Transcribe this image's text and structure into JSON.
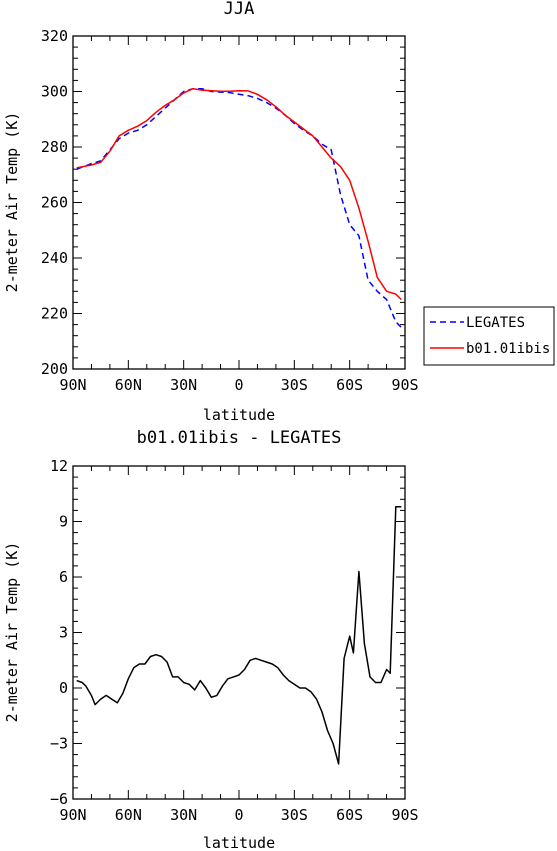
{
  "chart_data": [
    {
      "type": "line",
      "title": "JJA",
      "xlabel": "latitude",
      "ylabel": "2-meter Air Temp (K)",
      "xlim": [
        90,
        -90
      ],
      "ylim": [
        200,
        320
      ],
      "xticks": [
        90,
        60,
        30,
        0,
        -30,
        -60,
        -90
      ],
      "xtick_labels": [
        "90N",
        "60N",
        "30N",
        "0",
        "30S",
        "60S",
        "90S"
      ],
      "yticks": [
        200,
        220,
        240,
        260,
        280,
        300,
        320
      ],
      "ytick_labels": [
        "200",
        "220",
        "240",
        "260",
        "280",
        "300",
        "320"
      ],
      "grid": false,
      "legend": "right, outside plot",
      "series": [
        {
          "name": "LEGATES",
          "color": "#0000ff",
          "dash": "dashed",
          "x": [
            88,
            80,
            75,
            70,
            65,
            60,
            55,
            50,
            45,
            40,
            35,
            30,
            25,
            20,
            15,
            10,
            5,
            0,
            -5,
            -10,
            -15,
            -20,
            -25,
            -30,
            -35,
            -40,
            -45,
            -50,
            -55,
            -60,
            -65,
            -70,
            -75,
            -80,
            -85,
            -88
          ],
          "y": [
            272,
            274,
            275,
            279,
            283,
            285,
            286,
            288,
            291,
            294,
            297,
            300,
            301,
            301,
            300,
            299.8,
            299.6,
            299,
            298.5,
            297.5,
            296,
            294,
            291.5,
            288.5,
            286,
            284,
            281,
            279,
            263,
            252,
            248,
            232,
            228,
            225,
            217,
            215
          ]
        },
        {
          "name": "b01.01ibis",
          "color": "#ff0000",
          "dash": "solid",
          "x": [
            88,
            80,
            75,
            70,
            65,
            60,
            55,
            50,
            45,
            40,
            35,
            30,
            25,
            20,
            15,
            10,
            5,
            0,
            -5,
            -10,
            -15,
            -20,
            -25,
            -30,
            -35,
            -40,
            -45,
            -50,
            -55,
            -60,
            -65,
            -70,
            -75,
            -80,
            -85,
            -88
          ],
          "y": [
            272.5,
            273.5,
            274.5,
            278.5,
            284,
            286,
            287.5,
            289.5,
            292.5,
            295,
            297,
            299.5,
            301,
            300.5,
            300.3,
            300.1,
            300.1,
            300.3,
            300.2,
            299,
            297,
            294.5,
            291.5,
            289,
            286.5,
            284,
            280,
            276,
            273,
            268,
            258,
            246,
            233,
            228,
            227,
            225
          ]
        }
      ]
    },
    {
      "type": "line",
      "title": "b01.01ibis - LEGATES",
      "xlabel": "latitude",
      "ylabel": "2-meter Air Temp (K)",
      "xlim": [
        90,
        -90
      ],
      "ylim": [
        -6,
        12
      ],
      "xticks": [
        90,
        60,
        30,
        0,
        -30,
        -60,
        -90
      ],
      "xtick_labels": [
        "90N",
        "60N",
        "30N",
        "0",
        "30S",
        "60S",
        "90S"
      ],
      "yticks": [
        -6,
        -3,
        0,
        3,
        6,
        9,
        12
      ],
      "ytick_labels": [
        "−6",
        "−3",
        "0",
        "3",
        "6",
        "9",
        "12"
      ],
      "grid": false,
      "series": [
        {
          "color": "#000000",
          "dash": "solid",
          "x": [
            88,
            85,
            83,
            80,
            78,
            75,
            72,
            69,
            66,
            63,
            60,
            57,
            54,
            51,
            48,
            45,
            42,
            39,
            36,
            33,
            30,
            27,
            24,
            21,
            18,
            15,
            12,
            9,
            6,
            3,
            0,
            -3,
            -6,
            -9,
            -12,
            -15,
            -18,
            -21,
            -24,
            -27,
            -30,
            -33,
            -36,
            -39,
            -42,
            -45,
            -48,
            -51,
            -54,
            -57,
            -60,
            -62,
            -65,
            -68,
            -71,
            -74,
            -77,
            -80,
            -82,
            -85,
            -88
          ],
          "y": [
            0.4,
            0.3,
            0.1,
            -0.4,
            -0.9,
            -0.6,
            -0.4,
            -0.6,
            -0.8,
            -0.3,
            0.5,
            1.1,
            1.3,
            1.3,
            1.7,
            1.8,
            1.7,
            1.4,
            0.6,
            0.6,
            0.3,
            0.2,
            -0.1,
            0.4,
            0.0,
            -0.5,
            -0.4,
            0.1,
            0.5,
            0.6,
            0.7,
            1.0,
            1.5,
            1.6,
            1.5,
            1.4,
            1.3,
            1.1,
            0.7,
            0.4,
            0.2,
            0.0,
            0.0,
            -0.2,
            -0.6,
            -1.3,
            -2.3,
            -3.0,
            -4.1,
            1.6,
            2.8,
            1.9,
            6.3,
            2.4,
            0.6,
            0.3,
            0.3,
            1.0,
            0.8,
            9.8,
            9.8
          ]
        }
      ]
    }
  ]
}
